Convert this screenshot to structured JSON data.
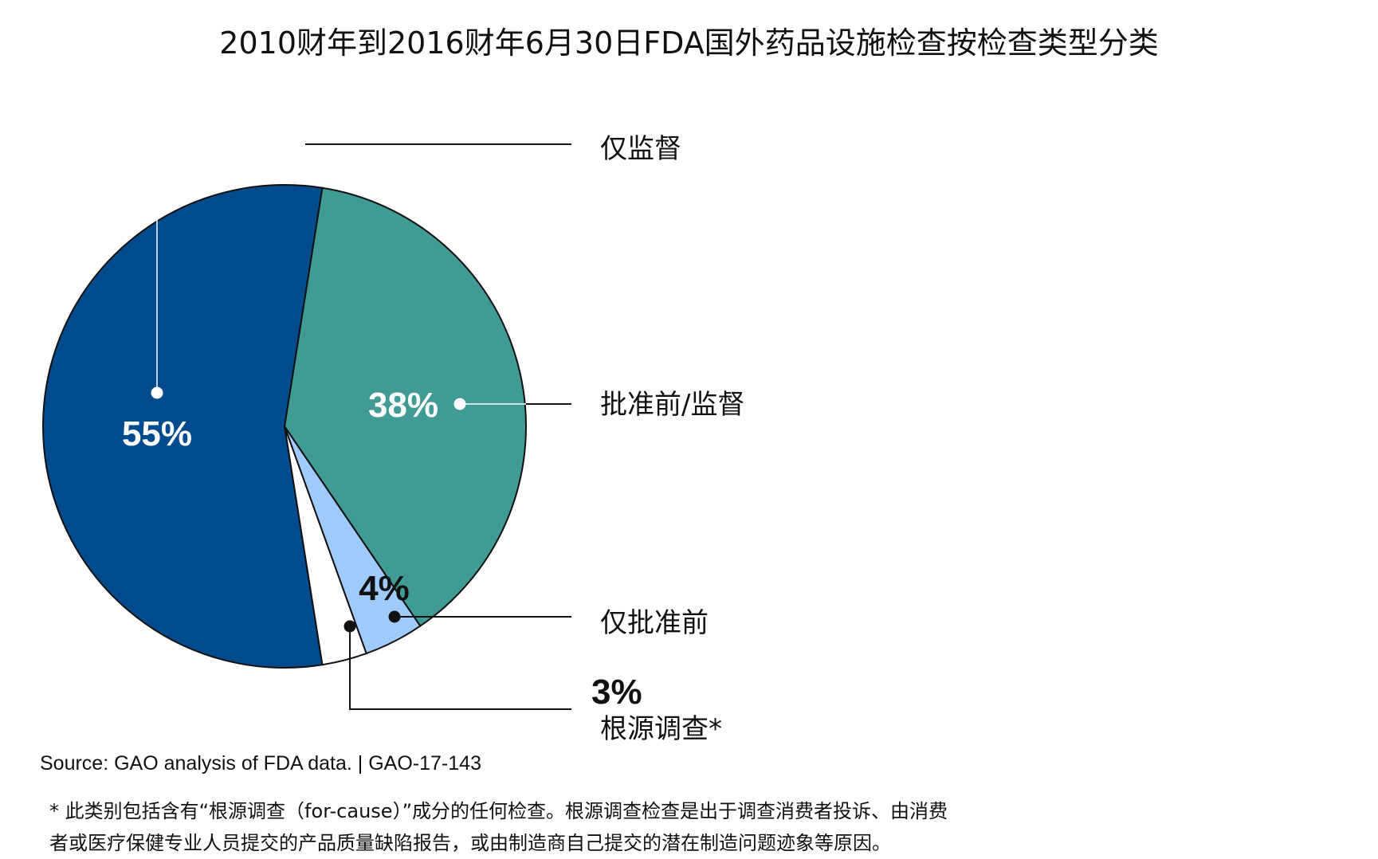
{
  "chart_data": {
    "type": "pie",
    "title": "2010财年到2016财年6月30日FDA国外药品设施检查按检查类型分类",
    "slices": [
      {
        "label": "仅监督",
        "value": 55,
        "value_label": "55%",
        "color": "#004b8d"
      },
      {
        "label": "批准前/监督",
        "value": 38,
        "value_label": "38%",
        "color": "#3f9b93"
      },
      {
        "label": "仅批准前",
        "value": 4,
        "value_label": "4%",
        "color": "#9ecbfb"
      },
      {
        "label": "根源调查*",
        "value": 3,
        "value_label": "3%",
        "color": "#ffffff"
      }
    ],
    "source": "Source: GAO analysis of FDA data.  | GAO-17-143",
    "footnote_lines": [
      "* 此类别包括含有“根源调查（for-cause）”成分的任何检查。根源调查检查是出于调查消费者投诉、由消费",
      "者或医疗保健专业人员提交的产品质量缺陷报告，或由制造商自己提交的潜在制造问题迹象等原因。"
    ]
  }
}
